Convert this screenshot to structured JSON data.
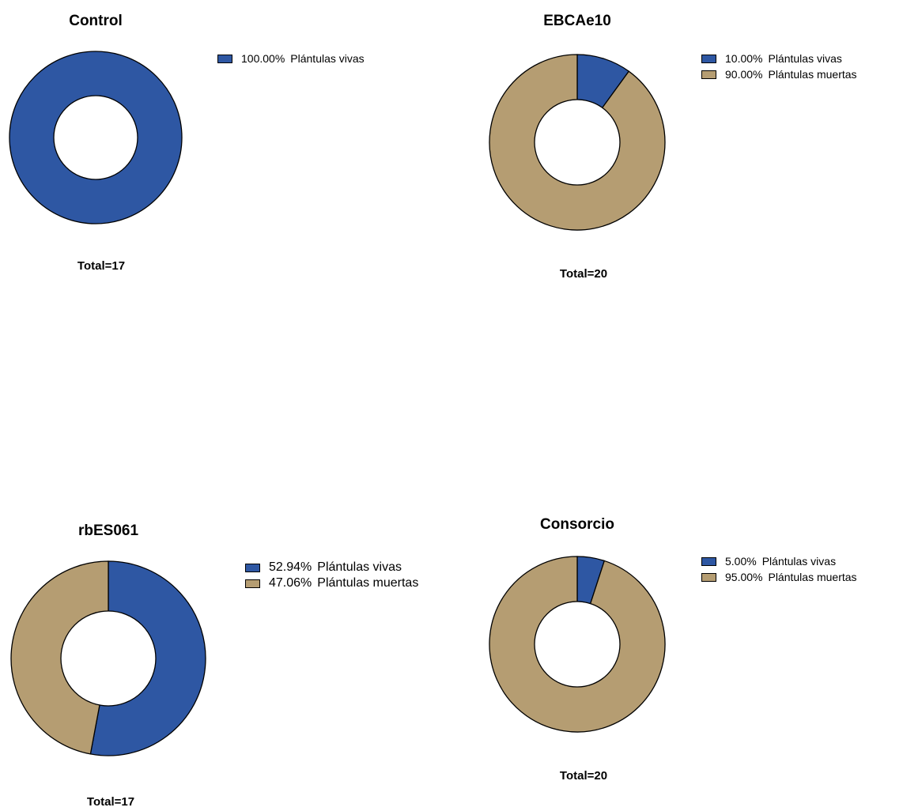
{
  "colors": {
    "vivas": "#2e57a3",
    "muertas": "#b59d72"
  },
  "chart_data": [
    {
      "type": "pie",
      "title": "Control",
      "total_label": "Total=17",
      "slices": [
        {
          "name": "Plántulas vivas",
          "percent": 100.0,
          "label": "100.00%"
        }
      ]
    },
    {
      "type": "pie",
      "title": "EBCAe10",
      "total_label": "Total=20",
      "slices": [
        {
          "name": "Plántulas vivas",
          "percent": 10.0,
          "label": "10.00%"
        },
        {
          "name": "Plántulas muertas",
          "percent": 90.0,
          "label": "90.00%"
        }
      ]
    },
    {
      "type": "pie",
      "title": "rbES061",
      "total_label": "Total=17",
      "slices": [
        {
          "name": "Plántulas vivas",
          "percent": 52.94,
          "label": "52.94%"
        },
        {
          "name": "Plántulas muertas",
          "percent": 47.06,
          "label": "47.06%"
        }
      ]
    },
    {
      "type": "pie",
      "title": "Consorcio",
      "total_label": "Total=20",
      "slices": [
        {
          "name": "Plántulas vivas",
          "percent": 5.0,
          "label": "5.00%"
        },
        {
          "name": "Plántulas muertas",
          "percent": 95.0,
          "label": "95.00%"
        }
      ]
    }
  ]
}
